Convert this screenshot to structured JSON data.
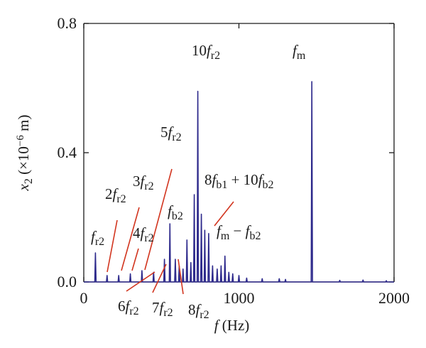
{
  "chart_data": {
    "type": "line",
    "xlabel": {
      "var": "f",
      "unit": " (Hz)"
    },
    "ylabel": {
      "var": "x",
      "sub": "2",
      "pre": " (×10",
      "exp": "−6",
      "post": " m)"
    },
    "xlim": [
      0,
      2000
    ],
    "ylim": [
      0,
      0.8
    ],
    "x_ticks": [
      0,
      1000,
      2000
    ],
    "x_tick_labels": [
      "0",
      "1000",
      "2000"
    ],
    "y_ticks": [
      0.0,
      0.4,
      0.8
    ],
    "y_tick_labels": [
      "0.0",
      "0.4",
      "0.8"
    ],
    "grid": false,
    "series": [
      {
        "color": "#2e2a8c",
        "peaks": [
          {
            "x": 75,
            "y": 0.09
          },
          {
            "x": 150,
            "y": 0.02
          },
          {
            "x": 225,
            "y": 0.02
          },
          {
            "x": 300,
            "y": 0.025
          },
          {
            "x": 375,
            "y": 0.035
          },
          {
            "x": 450,
            "y": 0.03
          },
          {
            "x": 520,
            "y": 0.07
          },
          {
            "x": 555,
            "y": 0.18
          },
          {
            "x": 590,
            "y": 0.07
          },
          {
            "x": 615,
            "y": 0.05
          },
          {
            "x": 640,
            "y": 0.04
          },
          {
            "x": 665,
            "y": 0.13
          },
          {
            "x": 690,
            "y": 0.06
          },
          {
            "x": 712,
            "y": 0.27
          },
          {
            "x": 735,
            "y": 0.59
          },
          {
            "x": 758,
            "y": 0.21
          },
          {
            "x": 780,
            "y": 0.16
          },
          {
            "x": 805,
            "y": 0.15
          },
          {
            "x": 830,
            "y": 0.05
          },
          {
            "x": 860,
            "y": 0.04
          },
          {
            "x": 885,
            "y": 0.05
          },
          {
            "x": 910,
            "y": 0.08
          },
          {
            "x": 935,
            "y": 0.03
          },
          {
            "x": 960,
            "y": 0.025
          },
          {
            "x": 1000,
            "y": 0.02
          },
          {
            "x": 1050,
            "y": 0.012
          },
          {
            "x": 1150,
            "y": 0.01
          },
          {
            "x": 1260,
            "y": 0.01
          },
          {
            "x": 1300,
            "y": 0.008
          },
          {
            "x": 1470,
            "y": 0.62
          },
          {
            "x": 1650,
            "y": 0.005
          },
          {
            "x": 1800,
            "y": 0.006
          },
          {
            "x": 1950,
            "y": 0.004
          }
        ]
      }
    ],
    "annotations": [
      {
        "id": "fr2",
        "parts": [
          {
            "t": "f",
            "i": true
          },
          {
            "t": "r2",
            "sub": true
          }
        ]
      },
      {
        "id": "2fr2",
        "parts": [
          {
            "t": "2"
          },
          {
            "t": "f",
            "i": true
          },
          {
            "t": "r2",
            "sub": true
          }
        ]
      },
      {
        "id": "3fr2",
        "parts": [
          {
            "t": "3"
          },
          {
            "t": "f",
            "i": true
          },
          {
            "t": "r2",
            "sub": true
          }
        ]
      },
      {
        "id": "4fr2",
        "parts": [
          {
            "t": "4"
          },
          {
            "t": "f",
            "i": true
          },
          {
            "t": "r2",
            "sub": true
          }
        ]
      },
      {
        "id": "5fr2",
        "parts": [
          {
            "t": "5"
          },
          {
            "t": "f",
            "i": true
          },
          {
            "t": "r2",
            "sub": true
          }
        ]
      },
      {
        "id": "6fr2",
        "parts": [
          {
            "t": "6"
          },
          {
            "t": "f",
            "i": true
          },
          {
            "t": "r2",
            "sub": true
          }
        ]
      },
      {
        "id": "7fr2",
        "parts": [
          {
            "t": "7"
          },
          {
            "t": "f",
            "i": true
          },
          {
            "t": "r2",
            "sub": true
          }
        ]
      },
      {
        "id": "8fr2",
        "parts": [
          {
            "t": "8"
          },
          {
            "t": "f",
            "i": true
          },
          {
            "t": "r2",
            "sub": true
          }
        ]
      },
      {
        "id": "10fr2",
        "parts": [
          {
            "t": "10"
          },
          {
            "t": "f",
            "i": true
          },
          {
            "t": "r2",
            "sub": true
          }
        ]
      },
      {
        "id": "fb2",
        "parts": [
          {
            "t": "f",
            "i": true
          },
          {
            "t": "b2",
            "sub": true
          }
        ]
      },
      {
        "id": "fm",
        "parts": [
          {
            "t": "f",
            "i": true
          },
          {
            "t": "m",
            "sub": true
          }
        ]
      },
      {
        "id": "8fb1",
        "parts": [
          {
            "t": "8"
          },
          {
            "t": "f",
            "i": true
          },
          {
            "t": "b1",
            "sub": true
          },
          {
            "t": " + 10"
          },
          {
            "t": "f",
            "i": true
          },
          {
            "t": "b2",
            "sub": true
          }
        ]
      },
      {
        "id": "fmfb2",
        "parts": [
          {
            "t": "f",
            "i": true
          },
          {
            "t": "m",
            "sub": true
          },
          {
            "t": " − "
          },
          {
            "t": "f",
            "i": true
          },
          {
            "t": "b2",
            "sub": true
          }
        ]
      }
    ],
    "colors": {
      "series": "#2e2a8c",
      "leader": "#d2351f",
      "axis": "#1a1a1a"
    }
  }
}
